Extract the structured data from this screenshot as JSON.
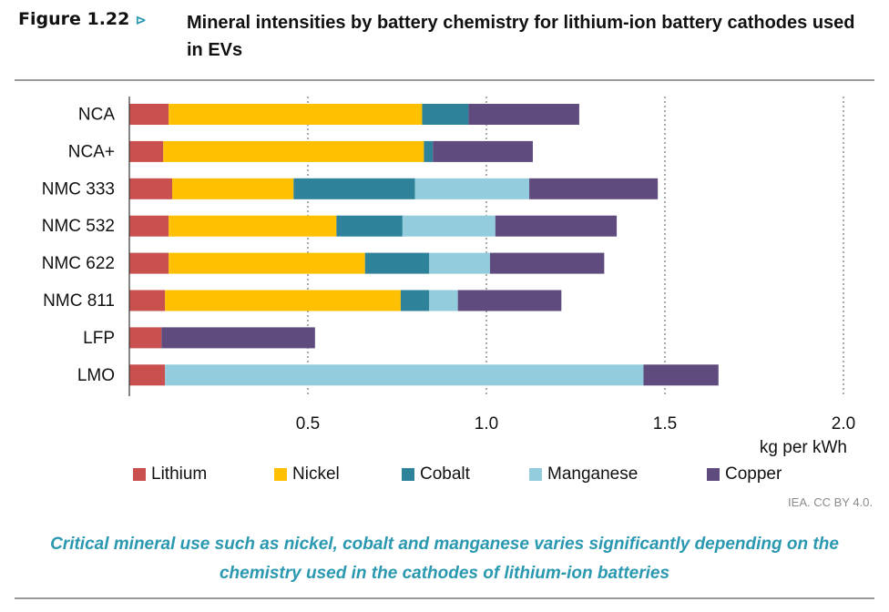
{
  "figure": {
    "number": "Figure 1.22",
    "arrow": "⊳",
    "title": "Mineral intensities by battery chemistry for lithium-ion battery cathodes used in EVs"
  },
  "credit": "IEA. CC BY 4.0.",
  "caption": "Critical mineral use such as nickel, cobalt and manganese varies significantly depending on the chemistry used in the cathodes of lithium-ion batteries",
  "chart_data": {
    "type": "bar",
    "orientation": "horizontal",
    "stacked": true,
    "categories": [
      "NCA",
      "NCA+",
      "NMC 333",
      "NMC 532",
      "NMC 622",
      "NMC 811",
      "LFP",
      "LMO"
    ],
    "series": [
      {
        "name": "Lithium",
        "color": "#c9504f",
        "values": [
          0.11,
          0.095,
          0.12,
          0.11,
          0.11,
          0.1,
          0.09,
          0.1
        ]
      },
      {
        "name": "Nickel",
        "color": "#fec000",
        "values": [
          0.71,
          0.73,
          0.34,
          0.47,
          0.55,
          0.66,
          0.0,
          0.0
        ]
      },
      {
        "name": "Cobalt",
        "color": "#2e8299",
        "values": [
          0.13,
          0.025,
          0.34,
          0.185,
          0.18,
          0.08,
          0.0,
          0.0
        ]
      },
      {
        "name": "Manganese",
        "color": "#93cddd",
        "values": [
          0.0,
          0.0,
          0.32,
          0.26,
          0.17,
          0.08,
          0.0,
          1.34
        ]
      },
      {
        "name": "Copper",
        "color": "#5f4b7e",
        "values": [
          0.31,
          0.28,
          0.36,
          0.34,
          0.32,
          0.29,
          0.43,
          0.21
        ]
      }
    ],
    "xlim": [
      0,
      2.0
    ],
    "xticks": [
      0.5,
      1.0,
      1.5,
      2.0
    ],
    "xtick_labels": [
      "0.5",
      "1.0",
      "1.5",
      "2.0"
    ],
    "xlabel": "kg per kWh",
    "grid": "vertical dotted",
    "legend_position": "bottom"
  }
}
